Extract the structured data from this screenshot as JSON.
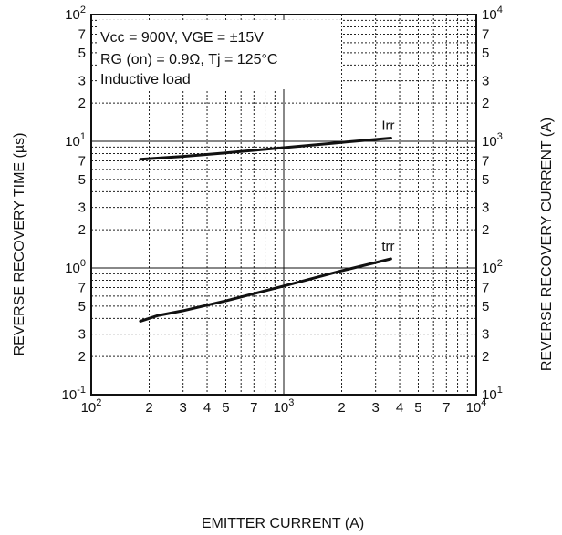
{
  "chart_data": {
    "type": "line",
    "x_scale": "log",
    "y_scale": "log",
    "grid": true,
    "xlabel": "EMITTER CURRENT (A)",
    "ylabel": "REVERSE RECOVERY TIME (µs)",
    "ylabel_right": "REVERSE RECOVERY CURRENT (A)",
    "xlim": [
      100,
      10000
    ],
    "ylim": [
      0.1,
      100
    ],
    "ylim_right": [
      10,
      10000
    ],
    "x_ticks": [
      {
        "v": 100,
        "base": "10",
        "exp": "2"
      },
      {
        "v": 200,
        "base": "2",
        "exp": ""
      },
      {
        "v": 300,
        "base": "3",
        "exp": ""
      },
      {
        "v": 400,
        "base": "4",
        "exp": ""
      },
      {
        "v": 500,
        "base": "5",
        "exp": ""
      },
      {
        "v": 700,
        "base": "7",
        "exp": ""
      },
      {
        "v": 1000,
        "base": "10",
        "exp": "3"
      },
      {
        "v": 2000,
        "base": "2",
        "exp": ""
      },
      {
        "v": 3000,
        "base": "3",
        "exp": ""
      },
      {
        "v": 4000,
        "base": "4",
        "exp": ""
      },
      {
        "v": 5000,
        "base": "5",
        "exp": ""
      },
      {
        "v": 7000,
        "base": "7",
        "exp": ""
      },
      {
        "v": 10000,
        "base": "10",
        "exp": "4"
      }
    ],
    "y_ticks": [
      {
        "v": 0.1,
        "base": "10",
        "exp": "-1"
      },
      {
        "v": 0.2,
        "base": "2",
        "exp": ""
      },
      {
        "v": 0.3,
        "base": "3",
        "exp": ""
      },
      {
        "v": 0.5,
        "base": "5",
        "exp": ""
      },
      {
        "v": 0.7,
        "base": "7",
        "exp": ""
      },
      {
        "v": 1,
        "base": "10",
        "exp": "0"
      },
      {
        "v": 2,
        "base": "2",
        "exp": ""
      },
      {
        "v": 3,
        "base": "3",
        "exp": ""
      },
      {
        "v": 5,
        "base": "5",
        "exp": ""
      },
      {
        "v": 7,
        "base": "7",
        "exp": ""
      },
      {
        "v": 10,
        "base": "10",
        "exp": "1"
      },
      {
        "v": 20,
        "base": "2",
        "exp": ""
      },
      {
        "v": 30,
        "base": "3",
        "exp": ""
      },
      {
        "v": 50,
        "base": "5",
        "exp": ""
      },
      {
        "v": 70,
        "base": "7",
        "exp": ""
      },
      {
        "v": 100,
        "base": "10",
        "exp": "2"
      }
    ],
    "y_ticks_right": [
      {
        "v": 0.1,
        "base": "10",
        "exp": "1"
      },
      {
        "v": 0.2,
        "base": "2",
        "exp": ""
      },
      {
        "v": 0.3,
        "base": "3",
        "exp": ""
      },
      {
        "v": 0.5,
        "base": "5",
        "exp": ""
      },
      {
        "v": 0.7,
        "base": "7",
        "exp": ""
      },
      {
        "v": 1,
        "base": "10",
        "exp": "2"
      },
      {
        "v": 2,
        "base": "2",
        "exp": ""
      },
      {
        "v": 3,
        "base": "3",
        "exp": ""
      },
      {
        "v": 5,
        "base": "5",
        "exp": ""
      },
      {
        "v": 7,
        "base": "7",
        "exp": ""
      },
      {
        "v": 10,
        "base": "10",
        "exp": "3"
      },
      {
        "v": 20,
        "base": "2",
        "exp": ""
      },
      {
        "v": 30,
        "base": "3",
        "exp": ""
      },
      {
        "v": 50,
        "base": "5",
        "exp": ""
      },
      {
        "v": 70,
        "base": "7",
        "exp": ""
      },
      {
        "v": 100,
        "base": "10",
        "exp": "4"
      }
    ],
    "annotations": [
      "Vcc = 900V, VGE = ±15V",
      "RG (on) = 0.9Ω, Tj = 125°C",
      "Inductive load"
    ],
    "series": [
      {
        "name": "Irr",
        "axis": "right",
        "x": [
          180,
          300,
          500,
          1000,
          2000,
          3600
        ],
        "y": [
          720,
          760,
          810,
          890,
          980,
          1060
        ]
      },
      {
        "name": "trr",
        "axis": "left",
        "x": [
          180,
          220,
          300,
          500,
          1000,
          2000,
          3600
        ],
        "y": [
          0.38,
          0.42,
          0.46,
          0.55,
          0.72,
          0.95,
          1.18
        ]
      }
    ]
  }
}
